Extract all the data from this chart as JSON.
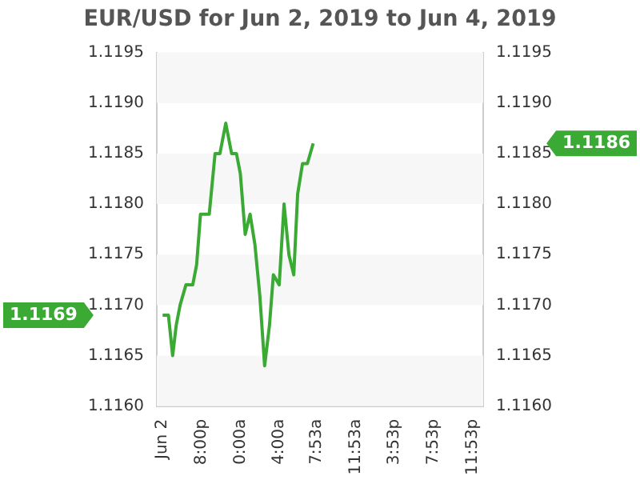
{
  "chart_data": {
    "type": "line",
    "title": "EUR/USD for Jun 2, 2019 to Jun 4, 2019",
    "x": [
      "2019-06-02T16:00",
      "2019-06-02T16:36",
      "2019-06-02T17:02",
      "2019-06-02T17:24",
      "2019-06-02T17:48",
      "2019-06-02T18:24",
      "2019-06-02T18:48",
      "2019-06-02T19:06",
      "2019-06-02T19:30",
      "2019-06-02T19:54",
      "2019-06-02T20:12",
      "2019-06-02T20:48",
      "2019-06-02T21:24",
      "2019-06-02T21:54",
      "2019-06-02T22:30",
      "2019-06-02T23:06",
      "2019-06-02T23:36",
      "2019-06-03T00:00",
      "2019-06-03T00:30",
      "2019-06-03T01:00",
      "2019-06-03T01:30",
      "2019-06-03T02:00",
      "2019-06-03T02:30",
      "2019-06-03T03:00",
      "2019-06-03T03:24",
      "2019-06-03T04:00",
      "2019-06-03T04:30",
      "2019-06-03T05:00",
      "2019-06-03T05:30",
      "2019-06-03T05:54",
      "2019-06-03T06:24",
      "2019-06-03T06:54",
      "2019-06-03T07:30"
    ],
    "series": [
      {
        "color": "#3aaa35",
        "values": [
          1.1169,
          1.1169,
          1.1165,
          1.1168,
          1.117,
          1.1172,
          1.1172,
          1.1172,
          1.1174,
          1.1179,
          1.1179,
          1.1179,
          1.1185,
          1.1185,
          1.1188,
          1.1185,
          1.1185,
          1.1183,
          1.1177,
          1.1179,
          1.1176,
          1.1171,
          1.1164,
          1.1168,
          1.1173,
          1.1172,
          1.118,
          1.1175,
          1.1173,
          1.1181,
          1.1184,
          1.1184,
          1.1186
        ]
      }
    ],
    "xlim": [
      "2019-06-02T15:24",
      "2019-06-04T01:00"
    ],
    "xticks": [
      {
        "value": "2019-06-02T16:00",
        "label": "Jun 2"
      },
      {
        "value": "2019-06-02T20:00",
        "label": "8:00p"
      },
      {
        "value": "2019-06-03T00:00",
        "label": "0:00a"
      },
      {
        "value": "2019-06-03T04:00",
        "label": "4:00a"
      },
      {
        "value": "2019-06-03T07:53",
        "label": "7:53a"
      },
      {
        "value": "2019-06-03T11:53",
        "label": "11:53a"
      },
      {
        "value": "2019-06-03T15:53",
        "label": "3:53p"
      },
      {
        "value": "2019-06-03T19:53",
        "label": "7:53p"
      },
      {
        "value": "2019-06-03T23:53",
        "label": "11:53p"
      }
    ],
    "ylim": [
      1.116,
      1.1195
    ],
    "yticks": [
      {
        "value": 1.116,
        "label": "1.1160"
      },
      {
        "value": 1.1165,
        "label": "1.1165"
      },
      {
        "value": 1.117,
        "label": "1.1170"
      },
      {
        "value": 1.1175,
        "label": "1.1175"
      },
      {
        "value": 1.118,
        "label": "1.1180"
      },
      {
        "value": 1.1185,
        "label": "1.1185"
      },
      {
        "value": 1.119,
        "label": "1.1190"
      },
      {
        "value": 1.1195,
        "label": "1.1195"
      }
    ],
    "y2lim": [
      1.116,
      1.1195
    ],
    "y2ticks": [
      {
        "value": 1.116,
        "label": "1.1160"
      },
      {
        "value": 1.1165,
        "label": "1.1165"
      },
      {
        "value": 1.117,
        "label": "1.1170"
      },
      {
        "value": 1.1175,
        "label": "1.1175"
      },
      {
        "value": 1.118,
        "label": "1.1180"
      },
      {
        "value": 1.1185,
        "label": "1.1185"
      },
      {
        "value": 1.119,
        "label": "1.1190"
      },
      {
        "value": 1.1195,
        "label": "1.1195"
      }
    ],
    "annotations": [
      "1.1169",
      "1.1186"
    ],
    "legend": false,
    "marker": "none",
    "line_style": "solid"
  }
}
